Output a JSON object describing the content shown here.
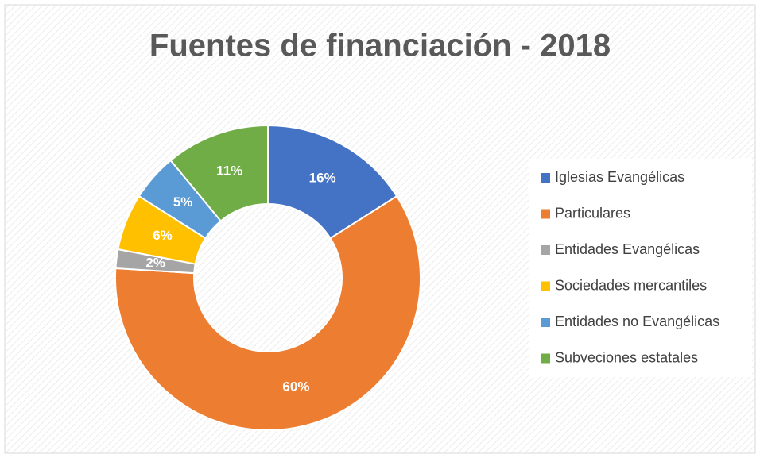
{
  "chart_data": {
    "type": "pie",
    "title": "Fuentes de financiación - 2018",
    "categories": [
      "Iglesias Evangélicas",
      "Particulares",
      "Entidades Evangélicas",
      "Sociedades mercantiles",
      "Entidades no Evangélicas",
      "Subveciones estatales"
    ],
    "values": [
      16,
      60,
      2,
      6,
      5,
      11
    ],
    "value_labels": [
      "16%",
      "60%",
      "2%",
      "6%",
      "5%",
      "11%"
    ],
    "colors": [
      "#4472c4",
      "#ed7d31",
      "#a5a5a5",
      "#ffc000",
      "#5b9bd5",
      "#70ad47"
    ],
    "legend": "right"
  }
}
